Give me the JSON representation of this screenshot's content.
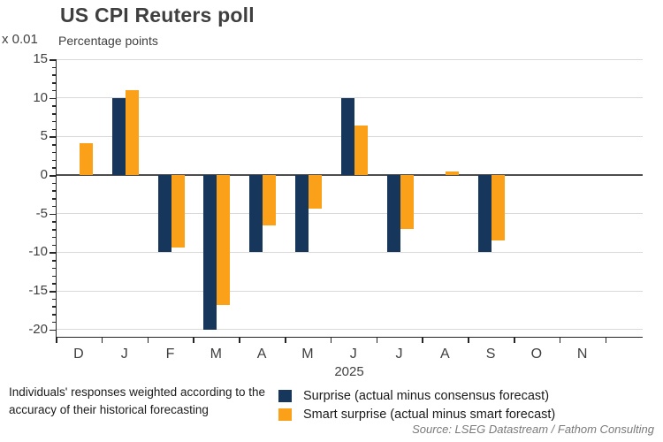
{
  "title": "US CPI Reuters poll",
  "axis_multiplier_label": "x 0.01",
  "y_axis_title": "Percentage points",
  "footnote": "Individuals' responses weighted according to the accuracy of their historical forecasting",
  "source": "Source: LSEG Datastream / Fathom Consulting",
  "colors": {
    "surprise_navy": "#16365C",
    "smart_surprise_orange": "#FAA019",
    "gridline": "#d9d9d9",
    "zero_line": "#4d4d4d",
    "axis": "#262626",
    "text": "#3f3f3f",
    "source_text": "#7a7a7a"
  },
  "chart_data": {
    "type": "bar",
    "categories": [
      "D",
      "J",
      "F",
      "M",
      "A",
      "M",
      "J",
      "J",
      "A",
      "S",
      "O",
      "N"
    ],
    "x_axis_year": "2025",
    "series": [
      {
        "name": "Surprise (actual minus consensus forecast)",
        "color": "#16365C",
        "values": [
          0,
          10,
          -10,
          -20,
          -10,
          -10,
          10,
          -10,
          0,
          -10,
          0,
          0
        ]
      },
      {
        "name": "Smart surprise (actual minus smart forecast)",
        "color": "#FAA019",
        "values": [
          4.1,
          11,
          -9.4,
          -16.8,
          -6.5,
          -4.3,
          6.4,
          -7,
          0.5,
          -8.5,
          0,
          0
        ]
      }
    ],
    "ylabel": "Percentage points (x 0.01)",
    "ylim": [
      -20,
      15
    ],
    "y_major_ticks": [
      15,
      10,
      5,
      0,
      -5,
      -10,
      -15,
      -20
    ],
    "y_minor_tick_step": 1,
    "grid": true,
    "legend_position": "bottom"
  }
}
